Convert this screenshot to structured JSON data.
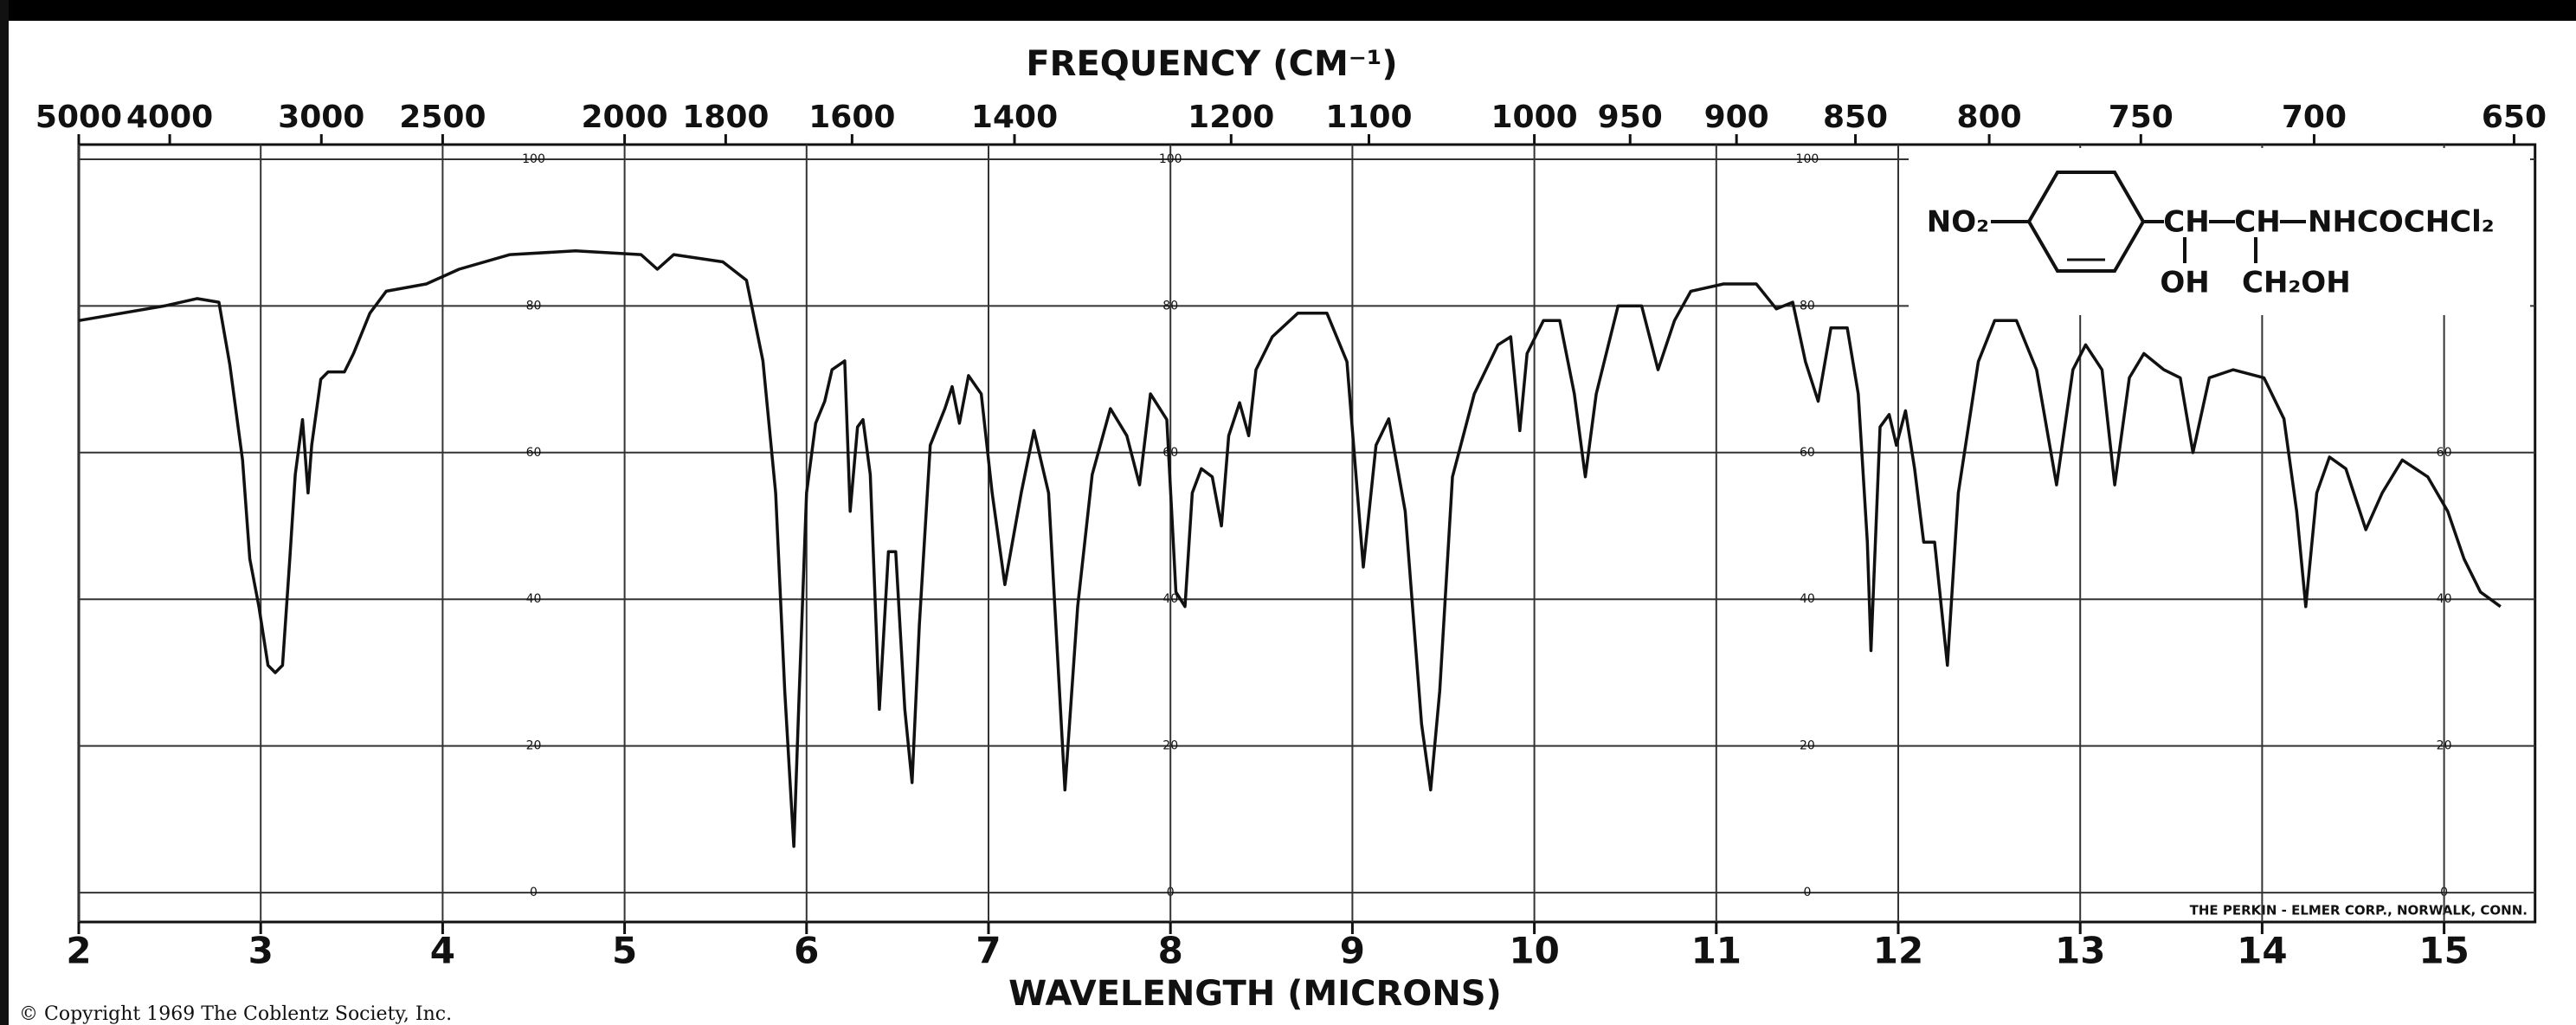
{
  "chart_data": {
    "type": "line",
    "x2label": "FREQUENCY (CM⁻¹)",
    "xlabel": "WAVELENGTH (MICRONS)",
    "x": [
      2.0,
      2.47,
      2.65,
      2.77,
      2.83,
      2.9,
      2.94,
      2.99,
      3.04,
      3.08,
      3.12,
      3.16,
      3.19,
      3.23,
      3.26,
      3.28,
      3.33,
      3.37,
      3.46,
      3.51,
      3.6,
      3.69,
      3.91,
      4.09,
      4.37,
      4.73,
      5.09,
      5.18,
      5.27,
      5.54,
      5.67,
      5.76,
      5.83,
      5.88,
      5.93,
      5.96,
      6.0,
      6.05,
      6.1,
      6.14,
      6.21,
      6.24,
      6.28,
      6.31,
      6.35,
      6.4,
      6.45,
      6.49,
      6.54,
      6.58,
      6.62,
      6.68,
      6.76,
      6.8,
      6.84,
      6.89,
      6.96,
      7.02,
      7.09,
      7.18,
      7.25,
      7.33,
      7.42,
      7.49,
      7.57,
      7.67,
      7.76,
      7.83,
      7.89,
      7.98,
      8.03,
      8.08,
      8.12,
      8.17,
      8.23,
      8.28,
      8.32,
      8.38,
      8.43,
      8.47,
      8.56,
      8.7,
      8.86,
      8.97,
      9.06,
      9.13,
      9.2,
      9.29,
      9.38,
      9.43,
      9.48,
      9.55,
      9.67,
      9.8,
      9.87,
      9.92,
      9.96,
      10.05,
      10.14,
      10.22,
      10.28,
      10.34,
      10.46,
      10.59,
      10.68,
      10.77,
      10.86,
      11.04,
      11.22,
      11.33,
      11.42,
      11.49,
      11.56,
      11.63,
      11.72,
      11.78,
      11.83,
      11.85,
      11.9,
      11.95,
      11.99,
      12.04,
      12.09,
      12.14,
      12.2,
      12.27,
      12.33,
      12.44,
      12.53,
      12.65,
      12.76,
      12.87,
      12.96,
      13.03,
      13.12,
      13.19,
      13.27,
      13.35,
      13.46,
      13.55,
      13.62,
      13.71,
      13.84,
      14.01,
      14.12,
      14.19,
      14.24,
      14.3,
      14.37,
      14.46,
      14.57,
      14.66,
      14.77,
      14.91,
      15.02,
      15.11,
      15.2,
      15.31
    ],
    "values": [
      78,
      80,
      81,
      80.5,
      72,
      59,
      45.5,
      39,
      31,
      30,
      31,
      45.5,
      57,
      64.5,
      54.5,
      61,
      70,
      71,
      71,
      73.5,
      79,
      82,
      83,
      85,
      87,
      87.5,
      87,
      85,
      87,
      86,
      83.5,
      72.5,
      54.5,
      27.5,
      6.3,
      27.5,
      54.5,
      64,
      67,
      71.3,
      72.5,
      52,
      63.5,
      64.5,
      57,
      25,
      46.5,
      46.5,
      25,
      15,
      36.5,
      61,
      66,
      69,
      64,
      70.5,
      68,
      54.5,
      42,
      54.5,
      63,
      54.5,
      14,
      39,
      57,
      66,
      62.3,
      55.6,
      68,
      64.5,
      41,
      39,
      54.5,
      57.8,
      56.7,
      50,
      62.3,
      66.8,
      62.3,
      71.3,
      75.8,
      79,
      79,
      72.4,
      44.4,
      61,
      64.6,
      52,
      23,
      14,
      27.5,
      56.7,
      68,
      74.7,
      75.8,
      63,
      73.5,
      78,
      78,
      68,
      56.7,
      68,
      80,
      80,
      71.3,
      78,
      82,
      83,
      83,
      79.6,
      80.5,
      72.4,
      67,
      77,
      77,
      68,
      47.8,
      33,
      63.5,
      65.2,
      61,
      65.7,
      57.8,
      47.8,
      47.8,
      31,
      54.5,
      72.4,
      78,
      78,
      71.3,
      55.6,
      71.3,
      74.7,
      71.3,
      55.6,
      70.2,
      73.5,
      71.3,
      70.2,
      60,
      70.2,
      71.3,
      70.2,
      64.6,
      52,
      39,
      54.5,
      59.4,
      57.8,
      49.5,
      54.5,
      59,
      56.7,
      52,
      45.5,
      41,
      39
    ],
    "color": "#111111",
    "xlim": [
      2,
      15.5
    ],
    "xticks": [
      2,
      3,
      4,
      5,
      6,
      7,
      8,
      9,
      10,
      11,
      12,
      13,
      14,
      15
    ],
    "ylim": [
      -4,
      102
    ],
    "yticks": [
      0,
      20,
      40,
      60,
      80,
      100
    ],
    "x2ticks": [
      5000,
      4000,
      3000,
      2500,
      2000,
      1800,
      1600,
      1400,
      1200,
      1100,
      1000,
      950,
      900,
      850,
      800,
      750,
      700,
      650
    ],
    "grid": true,
    "structure": [
      "NO₂",
      "CH",
      "CH",
      "NHCOCHCl₂",
      "OH",
      "CH₂OH"
    ],
    "maker": "THE PERKIN - ELMER CORP., NORWALK, CONN.",
    "copyright": "© Copyright 1969  The Coblentz Society, Inc."
  }
}
